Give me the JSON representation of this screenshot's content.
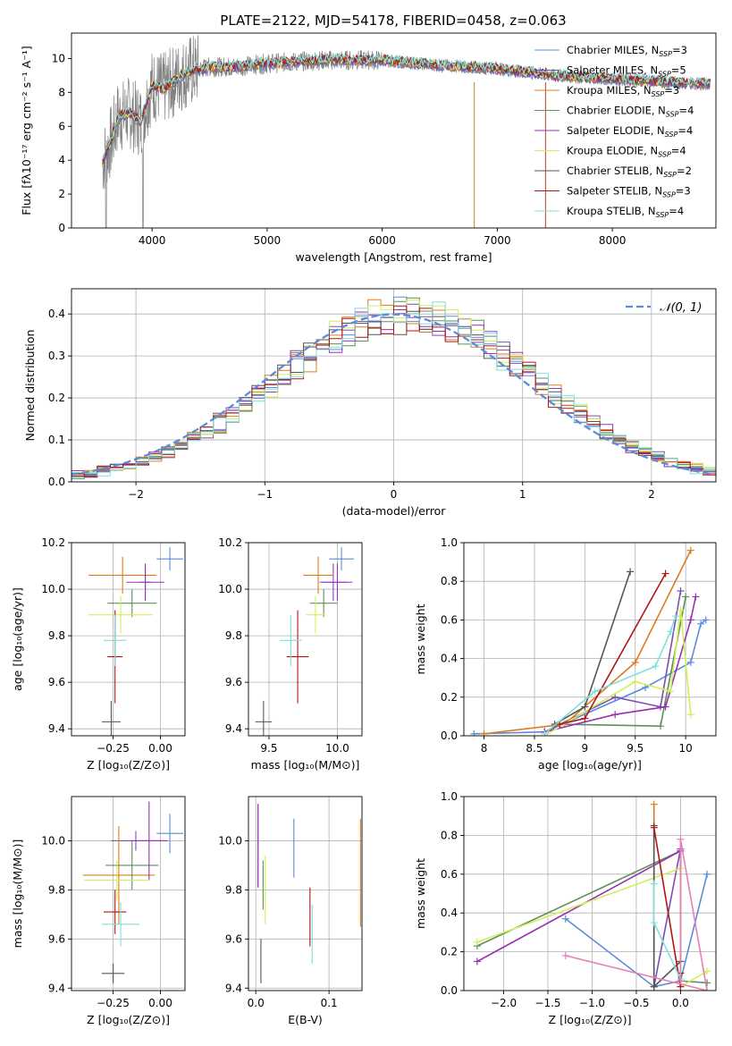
{
  "figure_title": "PLATE=2122, MJD=54178, FIBERID=0458, z=0.063",
  "models": [
    {
      "name": "Chabrier MILES",
      "nssp": "3",
      "color": "#5b8bd9"
    },
    {
      "name": "Salpeter MILES",
      "nssp": "5",
      "color": "#7b4fb0"
    },
    {
      "name": "Kroupa MILES",
      "nssp": "3",
      "color": "#e07b1e"
    },
    {
      "name": "Chabrier ELODIE",
      "nssp": "4",
      "color": "#5e8f5c"
    },
    {
      "name": "Salpeter ELODIE",
      "nssp": "4",
      "color": "#9b30b3"
    },
    {
      "name": "Kroupa ELODIE",
      "nssp": "4",
      "color": "#d2ee5a"
    },
    {
      "name": "Chabrier STELIB",
      "nssp": "2",
      "color": "#555555"
    },
    {
      "name": "Salpeter STELIB",
      "nssp": "3",
      "color": "#b01515"
    },
    {
      "name": "Kroupa STELIB",
      "nssp": "4",
      "color": "#7fe0dc"
    }
  ],
  "chart_data": [
    {
      "id": "spectrum",
      "type": "line",
      "xlabel": "wavelength [Angstrom, rest frame]",
      "ylabel": "Flux [fλ10⁻¹⁷ erg cm⁻² s⁻¹ A⁻¹]",
      "xlim": [
        3300,
        8900
      ],
      "ylim": [
        0,
        11.5
      ],
      "xticks": [
        4000,
        5000,
        6000,
        7000,
        8000
      ],
      "yticks": [
        0,
        2,
        4,
        6,
        8,
        10
      ],
      "data_color": "#808080",
      "data_range": [
        3570,
        8850
      ],
      "model_envelope": {
        "x": [
          3570,
          3650,
          3700,
          3800,
          3900,
          4000,
          4100,
          4300,
          4500,
          4700,
          5000,
          5500,
          6000,
          6500,
          7000,
          7500,
          8000,
          8500,
          8850
        ],
        "y": [
          3.9,
          5.2,
          6.5,
          6.8,
          6.3,
          8.4,
          8.2,
          9.2,
          9.5,
          9.5,
          9.7,
          9.9,
          9.9,
          9.6,
          9.4,
          9.0,
          8.8,
          8.6,
          8.5
        ]
      },
      "legend_position": "top-right",
      "grid": false
    },
    {
      "id": "residuals",
      "type": "histogram",
      "xlabel": "(data-model)/error",
      "ylabel": "Normed distribution",
      "xlim": [
        -2.5,
        2.5
      ],
      "ylim": [
        0,
        0.46
      ],
      "xticks": [
        -2,
        -1,
        0,
        1,
        2
      ],
      "yticks": [
        0.0,
        0.1,
        0.2,
        0.3,
        0.4
      ],
      "bin_width": 0.1,
      "reference_curve": {
        "label": "𝒩(0, 1)",
        "color": "#5b8bd9",
        "style": "dashed"
      },
      "legend_position": "top-right",
      "grid": true
    },
    {
      "id": "age_vs_Z",
      "type": "errorbar",
      "xlabel": "Z [log₁₀(Z/Z⊙)]",
      "ylabel": "age  [log₁₀(age/yr)]",
      "xlim": [
        -0.47,
        0.13
      ],
      "ylim": [
        9.37,
        10.2
      ],
      "xticks": [
        -0.25,
        0.0
      ],
      "xticklabels": [
        "−0.25",
        "0.00"
      ],
      "yticks": [
        9.4,
        9.6,
        9.8,
        10.0,
        10.2
      ],
      "points": [
        {
          "x": 0.05,
          "xerr": 0.07,
          "y": 10.13,
          "yerr": 0.05
        },
        {
          "x": -0.08,
          "xerr": 0.03,
          "y": 10.03,
          "yerr": 0.05
        },
        {
          "x": -0.2,
          "xerr": 0.18,
          "y": 10.06,
          "yerr": 0.08
        },
        {
          "x": -0.15,
          "xerr": 0.13,
          "y": 9.94,
          "yerr": 0.06
        },
        {
          "x": -0.08,
          "xerr": 0.1,
          "y": 10.03,
          "yerr": 0.08
        },
        {
          "x": -0.21,
          "xerr": 0.17,
          "y": 9.89,
          "yerr": 0.08
        },
        {
          "x": -0.26,
          "xerr": 0.05,
          "y": 9.43,
          "yerr": 0.09
        },
        {
          "x": -0.24,
          "xerr": 0.04,
          "y": 9.71,
          "yerr": 0.2
        },
        {
          "x": -0.24,
          "xerr": 0.06,
          "y": 9.78,
          "yerr": 0.11
        }
      ]
    },
    {
      "id": "age_vs_mass",
      "type": "errorbar",
      "xlabel": "mass [log₁₀(M/M⊙)]",
      "ylabel": "",
      "xlim": [
        9.35,
        10.18
      ],
      "ylim": [
        9.37,
        10.2
      ],
      "xticks": [
        9.5,
        10.0
      ],
      "xticklabels": [
        "9.5",
        "10.0"
      ],
      "yticks": [
        9.4,
        9.6,
        9.8,
        10.0,
        10.2
      ],
      "points": [
        {
          "x": 10.03,
          "xerr": 0.09,
          "y": 10.13,
          "yerr": 0.05
        },
        {
          "x": 9.97,
          "xerr": 0.1,
          "y": 10.03,
          "yerr": 0.08
        },
        {
          "x": 9.86,
          "xerr": 0.11,
          "y": 10.06,
          "yerr": 0.08
        },
        {
          "x": 9.9,
          "xerr": 0.1,
          "y": 9.94,
          "yerr": 0.06
        },
        {
          "x": 10.0,
          "xerr": 0.11,
          "y": 10.03,
          "yerr": 0.08
        },
        {
          "x": 9.84,
          "xerr": 0.07,
          "y": 9.89,
          "yerr": 0.08
        },
        {
          "x": 9.46,
          "xerr": 0.06,
          "y": 9.43,
          "yerr": 0.09
        },
        {
          "x": 9.71,
          "xerr": 0.08,
          "y": 9.71,
          "yerr": 0.2
        },
        {
          "x": 9.66,
          "xerr": 0.08,
          "y": 9.78,
          "yerr": 0.11
        }
      ]
    },
    {
      "id": "mass_weight_vs_age",
      "type": "line",
      "xlabel": "age  [log₁₀(age/yr)]",
      "ylabel": "mass weight",
      "xlim": [
        7.8,
        10.3
      ],
      "ylim": [
        0,
        1.0
      ],
      "xticks": [
        8.0,
        8.5,
        9.0,
        9.5,
        10.0
      ],
      "yticks": [
        0.0,
        0.2,
        0.4,
        0.6,
        0.8,
        1.0
      ],
      "series": [
        {
          "x": [
            7.9,
            8.6,
            9.6,
            10.05,
            10.15,
            10.2
          ],
          "y": [
            0.01,
            0.02,
            0.25,
            0.38,
            0.58,
            0.6
          ]
        },
        {
          "x": [
            8.6,
            9.3,
            9.75,
            9.95
          ],
          "y": [
            0.02,
            0.2,
            0.15,
            0.75
          ]
        },
        {
          "x": [
            8.0,
            8.8,
            9.5,
            10.05
          ],
          "y": [
            0.01,
            0.06,
            0.38,
            0.96
          ]
        },
        {
          "x": [
            8.75,
            9.75,
            10.0
          ],
          "y": [
            0.06,
            0.05,
            0.72
          ]
        },
        {
          "x": [
            8.6,
            9.3,
            9.8,
            10.05,
            10.1
          ],
          "y": [
            0.02,
            0.11,
            0.15,
            0.6,
            0.72
          ]
        },
        {
          "x": [
            8.6,
            9.5,
            9.85,
            9.95,
            10.05
          ],
          "y": [
            0.0,
            0.28,
            0.23,
            0.65,
            0.11
          ]
        },
        {
          "x": [
            8.7,
            9.0,
            9.45
          ],
          "y": [
            0.06,
            0.15,
            0.85
          ]
        },
        {
          "x": [
            8.75,
            9.0,
            9.8
          ],
          "y": [
            0.06,
            0.09,
            0.84
          ]
        },
        {
          "x": [
            8.6,
            9.1,
            9.7,
            9.85,
            9.9
          ],
          "y": [
            0.01,
            0.23,
            0.36,
            0.54,
            0.62
          ]
        }
      ]
    },
    {
      "id": "mass_vs_Z",
      "type": "errorbar",
      "xlabel": "Z [log₁₀(Z/Z⊙)]",
      "ylabel": "mass [log₁₀(M/M⊙)]",
      "xlim": [
        -0.47,
        0.13
      ],
      "ylim": [
        9.39,
        10.18
      ],
      "xticks": [
        -0.25,
        0.0
      ],
      "xticklabels": [
        "−0.25",
        "0.00"
      ],
      "yticks": [
        9.4,
        9.6,
        9.8,
        10.0
      ],
      "points": [
        {
          "x": 0.05,
          "xerr": 0.07,
          "y": 10.03,
          "yerr": 0.08
        },
        {
          "x": -0.13,
          "xerr": 0.13,
          "y": 10.0,
          "yerr": 0.04
        },
        {
          "x": -0.22,
          "xerr": 0.19,
          "y": 9.86,
          "yerr": 0.2
        },
        {
          "x": -0.15,
          "xerr": 0.14,
          "y": 9.9,
          "yerr": 0.1
        },
        {
          "x": -0.06,
          "xerr": 0.1,
          "y": 10.0,
          "yerr": 0.16
        },
        {
          "x": -0.23,
          "xerr": 0.17,
          "y": 9.84,
          "yerr": 0.08
        },
        {
          "x": -0.25,
          "xerr": 0.06,
          "y": 9.46,
          "yerr": 0.04
        },
        {
          "x": -0.24,
          "xerr": 0.06,
          "y": 9.71,
          "yerr": 0.09
        },
        {
          "x": -0.21,
          "xerr": 0.1,
          "y": 9.66,
          "yerr": 0.09
        }
      ]
    },
    {
      "id": "mass_vs_EBV",
      "type": "errorbar",
      "xlabel": "E(B-V)",
      "ylabel": "",
      "xlim": [
        -0.01,
        0.145
      ],
      "ylim": [
        9.39,
        10.18
      ],
      "xticks": [
        0.0,
        0.1
      ],
      "xticklabels": [
        "0.0",
        "0.1"
      ],
      "yticks": [
        9.4,
        9.6,
        9.8,
        10.0
      ],
      "points": [
        {
          "x": 0.052,
          "xerr": 0.0,
          "y": 9.97,
          "yerr": 0.12
        },
        {
          "x": 0.003,
          "xerr": 0.0,
          "y": 9.98,
          "yerr": 0.17
        },
        {
          "x": 0.143,
          "xerr": 0.0,
          "y": 9.87,
          "yerr": 0.22
        },
        {
          "x": 0.01,
          "xerr": 0.0,
          "y": 9.82,
          "yerr": 0.1
        },
        {
          "x": 0.003,
          "xerr": 0.0,
          "y": 9.98,
          "yerr": 0.17
        },
        {
          "x": 0.013,
          "xerr": 0.0,
          "y": 9.8,
          "yerr": 0.14
        },
        {
          "x": 0.007,
          "xerr": 0.0,
          "y": 9.51,
          "yerr": 0.09
        },
        {
          "x": 0.074,
          "xerr": 0.0,
          "y": 9.69,
          "yerr": 0.12
        },
        {
          "x": 0.077,
          "xerr": 0.0,
          "y": 9.62,
          "yerr": 0.12
        }
      ]
    },
    {
      "id": "mass_weight_vs_Z",
      "type": "line",
      "xlabel": "Z [log₁₀(Z/Z⊙)]",
      "ylabel": "mass weight",
      "xlim": [
        -2.45,
        0.4
      ],
      "ylim": [
        0,
        1.0
      ],
      "xticks": [
        -2.0,
        -1.5,
        -1.0,
        -0.5,
        0.0
      ],
      "xticklabels": [
        "−2.0",
        "−1.5",
        "−1.0",
        "−0.5",
        "0.0"
      ],
      "yticks": [
        0.0,
        0.2,
        0.4,
        0.6,
        0.8,
        1.0
      ],
      "series": [
        {
          "x": [
            -1.3,
            -0.3,
            0.0,
            0.3
          ],
          "y": [
            0.37,
            0.02,
            0.05,
            0.6
          ]
        },
        {
          "x": [
            -0.3,
            0.0
          ],
          "y": [
            0.02,
            0.73
          ]
        },
        {
          "x": [
            -0.3,
            -0.3
          ],
          "y": [
            0.96,
            0.02
          ]
        },
        {
          "x": [
            -2.3,
            0.0,
            0.0,
            0.3
          ],
          "y": [
            0.23,
            0.72,
            0.05,
            0.04
          ]
        },
        {
          "x": [
            -2.3,
            0.0,
            0.0
          ],
          "y": [
            0.15,
            0.72,
            0.15
          ]
        },
        {
          "x": [
            -2.3,
            0.0,
            0.0,
            0.3
          ],
          "y": [
            0.25,
            0.63,
            0.02,
            0.1
          ]
        },
        {
          "x": [
            -0.3,
            -0.3,
            0.0
          ],
          "y": [
            0.85,
            0.02,
            0.15
          ]
        },
        {
          "x": [
            -0.3,
            0.0,
            0.0
          ],
          "y": [
            0.84,
            0.02,
            0.09
          ]
        },
        {
          "x": [
            -0.3,
            -0.3,
            0.0
          ],
          "y": [
            0.55,
            0.35,
            0.06
          ]
        }
      ],
      "extra_series": {
        "color": "#e67fb8",
        "x": [
          -1.3,
          0.3,
          0.0,
          0.0
        ],
        "y": [
          0.18,
          0.0,
          0.78,
          0.05
        ]
      }
    }
  ]
}
